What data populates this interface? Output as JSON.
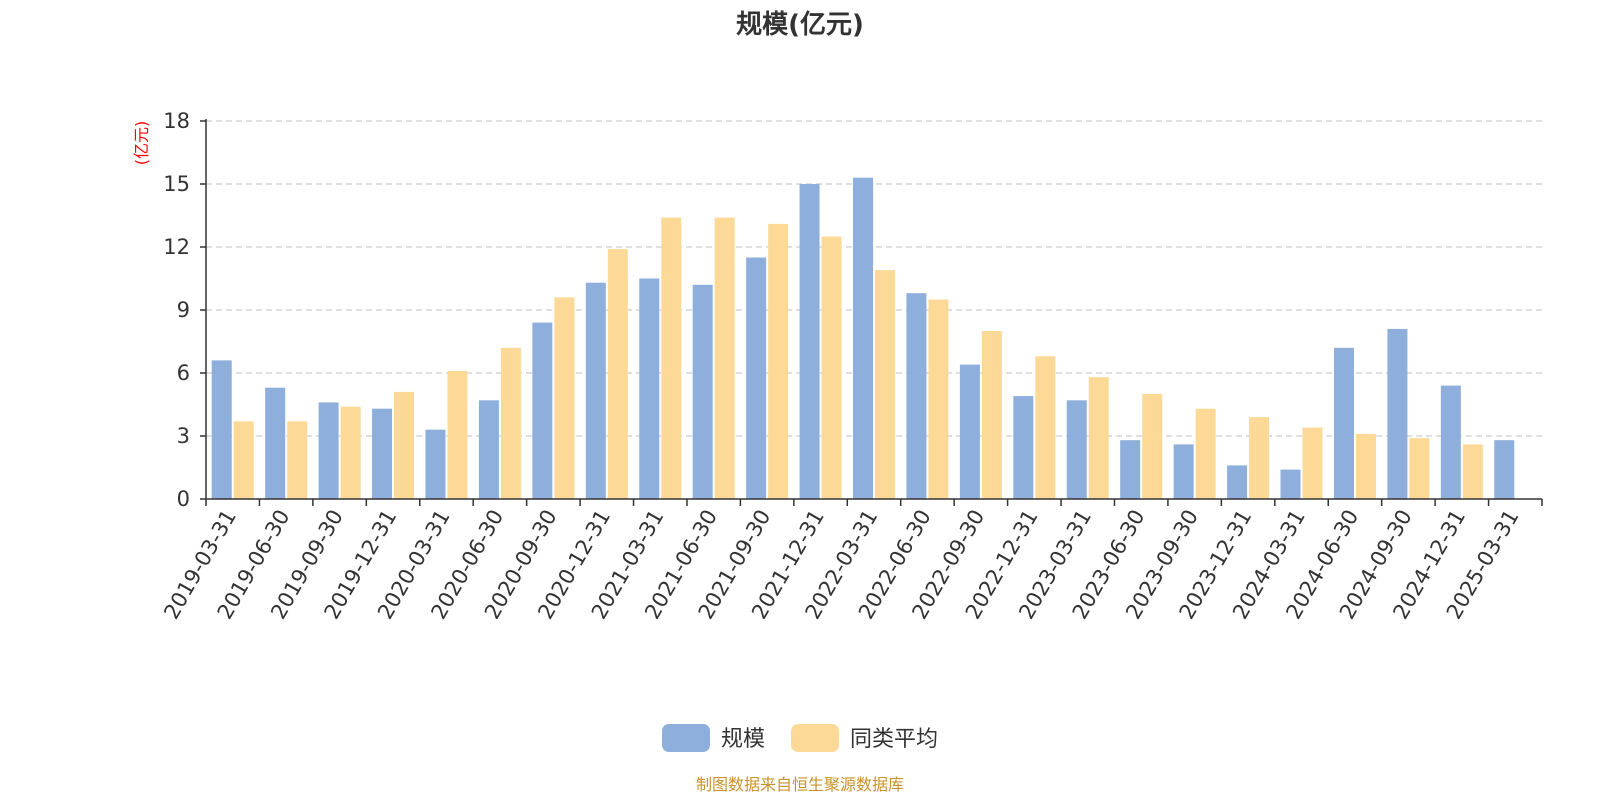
{
  "chart_data": {
    "type": "bar",
    "title": "规模(亿元)",
    "ylabel": "(亿元)",
    "xlabel": "",
    "ylim": [
      0,
      18
    ],
    "yticks": [
      0,
      3,
      6,
      9,
      12,
      15,
      18
    ],
    "grid": true,
    "legend_position": "bottom",
    "categories": [
      "2019-03-31",
      "2019-06-30",
      "2019-09-30",
      "2019-12-31",
      "2020-03-31",
      "2020-06-30",
      "2020-09-30",
      "2020-12-31",
      "2021-03-31",
      "2021-06-30",
      "2021-09-30",
      "2021-12-31",
      "2022-03-31",
      "2022-06-30",
      "2022-09-30",
      "2022-12-31",
      "2023-03-31",
      "2023-06-30",
      "2023-09-30",
      "2023-12-31",
      "2024-03-31",
      "2024-06-30",
      "2024-09-30",
      "2024-12-31",
      "2025-03-31"
    ],
    "series": [
      {
        "name": "规模",
        "color": "#8eaedb",
        "values": [
          6.6,
          5.3,
          4.6,
          4.3,
          3.3,
          4.7,
          8.4,
          10.3,
          10.5,
          10.2,
          11.5,
          15.0,
          15.3,
          9.8,
          6.4,
          4.9,
          4.7,
          2.8,
          2.6,
          1.6,
          1.4,
          7.2,
          8.1,
          5.4,
          2.8
        ]
      },
      {
        "name": "同类平均",
        "color": "#fdd998",
        "values": [
          3.7,
          3.7,
          4.4,
          5.1,
          6.1,
          7.2,
          9.6,
          11.9,
          13.4,
          13.4,
          13.1,
          12.5,
          10.9,
          9.5,
          8.0,
          6.8,
          5.8,
          5.0,
          4.3,
          3.9,
          3.4,
          3.1,
          2.9,
          2.6,
          null
        ]
      }
    ],
    "source": "制图数据来自恒生聚源数据库",
    "colors": {
      "axis": "#333333",
      "grid": "#cccccc",
      "ylabel": "#ff0000",
      "source": "#c8922c"
    }
  }
}
